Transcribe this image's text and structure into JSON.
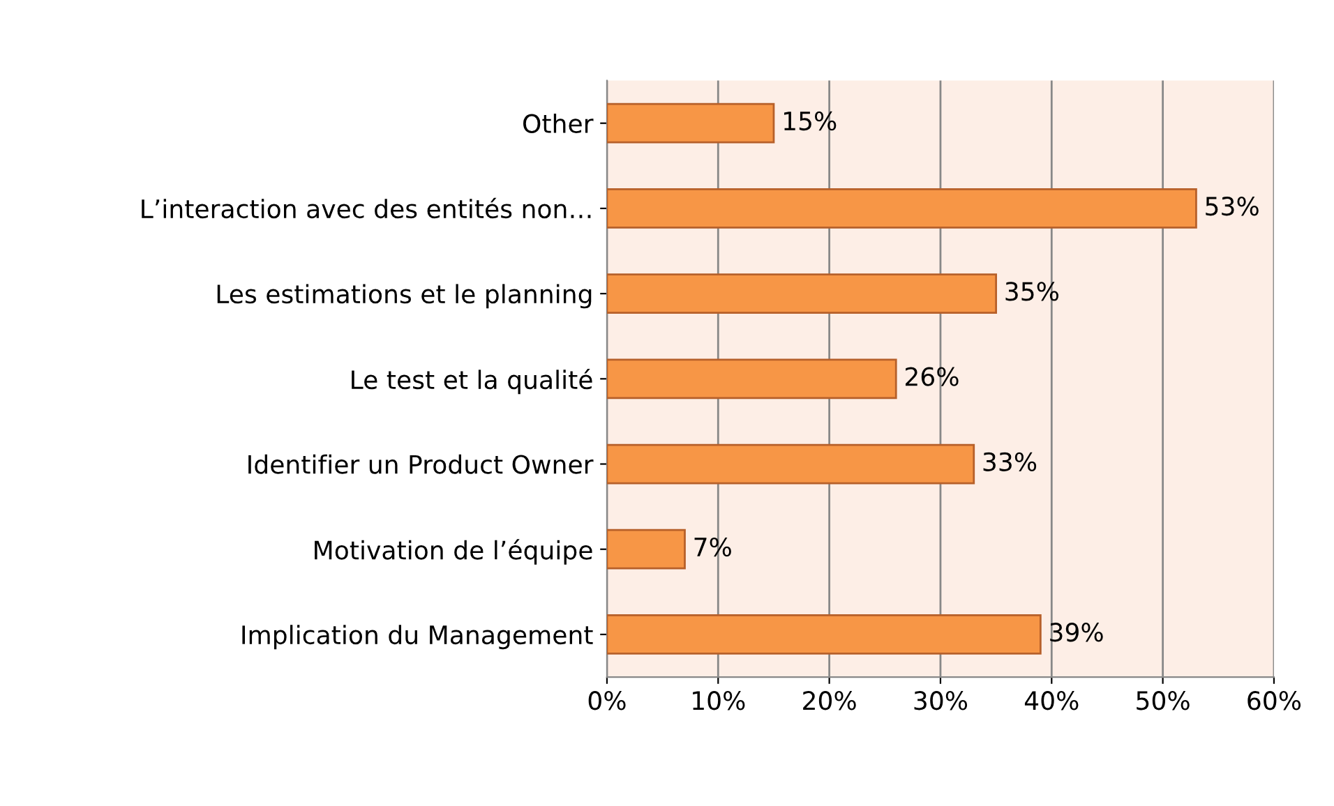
{
  "chart_data": {
    "type": "bar",
    "orientation": "horizontal",
    "categories": [
      "Other",
      "L’interaction avec des entités non…",
      "Les estimations et le planning",
      "Le test et la qualité",
      "Identifier un Product Owner",
      "Motivation de l’équipe",
      "Implication du Management"
    ],
    "values": [
      15,
      53,
      35,
      26,
      33,
      7,
      39
    ],
    "value_labels": [
      "15%",
      "53%",
      "35%",
      "26%",
      "33%",
      "7%",
      "39%"
    ],
    "color": "#f79646",
    "xlim": [
      0,
      60
    ],
    "xticks": [
      {
        "value": 0,
        "label": "0%"
      },
      {
        "value": 10,
        "label": "10%"
      },
      {
        "value": 20,
        "label": "20%"
      },
      {
        "value": 30,
        "label": "30%"
      },
      {
        "value": 40,
        "label": "40%"
      },
      {
        "value": 50,
        "label": "50%"
      },
      {
        "value": 60,
        "label": "60%"
      }
    ],
    "grid": "x",
    "legend": false
  }
}
